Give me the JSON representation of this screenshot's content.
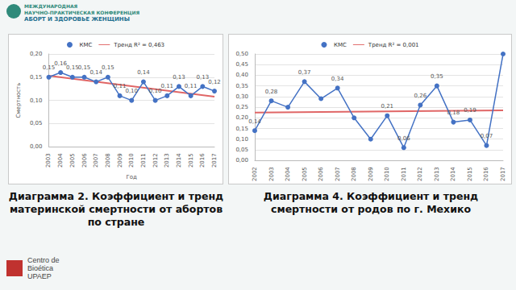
{
  "header": [
    "МЕЖДУНАРОДНАЯ",
    "НАУЧНО-ПРАКТИЧЕСКАЯ КОНФЕРЕНЦИЯ",
    "АБОРТ И ЗДОРОВЬЕ ЖЕНЩИНЫ"
  ],
  "footer": [
    "Centro de",
    "Bioética",
    "UPAEP"
  ],
  "chart_data": [
    {
      "type": "line",
      "title": "Диаграмма 2. Коэффициент и тренд материнской смертности от абортов по стране",
      "x_label": "Год",
      "y_label": "Смертность",
      "categories": [
        "2003",
        "2004",
        "2005",
        "2006",
        "2007",
        "2008",
        "2009",
        "2010",
        "2011",
        "2012",
        "2013",
        "2014",
        "2015",
        "2016",
        "2017"
      ],
      "series": [
        {
          "name": "КМС",
          "color": "#4472c4",
          "marker": "circle",
          "line_style": "solid",
          "data_labels": true,
          "values": [
            0.15,
            0.16,
            0.15,
            0.15,
            0.14,
            0.15,
            0.11,
            0.1,
            0.14,
            0.1,
            0.11,
            0.13,
            0.11,
            0.13,
            0.12
          ],
          "value_labels": [
            "0,15",
            "0,16",
            "0,15",
            "0,15",
            "0,14",
            "0,15",
            "0,11",
            "0,10",
            "0,14",
            "0,10",
            "0,11",
            "0,13",
            "0,11",
            "0,13",
            "0,12"
          ]
        },
        {
          "name": "Тренд R² = 0,463",
          "color": "#e06666",
          "marker": "none",
          "line_style": "solid",
          "values": [
            0.153,
            null,
            null,
            null,
            null,
            null,
            null,
            null,
            null,
            null,
            null,
            null,
            null,
            null,
            0.108
          ]
        }
      ],
      "ylim": [
        0,
        0.2
      ],
      "yticks": [
        {
          "value": 0,
          "label": "0,00"
        },
        {
          "value": 0.05,
          "label": "0,05"
        },
        {
          "value": 0.1,
          "label": "0,10"
        },
        {
          "value": 0.15,
          "label": "0,15"
        },
        {
          "value": 0.2,
          "label": "0,20"
        }
      ],
      "grid": true,
      "legend": "top"
    },
    {
      "type": "line",
      "title": "Диаграмма 4. Коэффициент и тренд смертности от родов по г. Мехико",
      "categories": [
        "2002",
        "2003",
        "2004",
        "2005",
        "2006",
        "2007",
        "2008",
        "2009",
        "2010",
        "2011",
        "2012",
        "2013",
        "2014",
        "2015",
        "2016",
        "2017"
      ],
      "series": [
        {
          "name": "КМС",
          "color": "#4472c4",
          "marker": "circle",
          "line_style": "solid",
          "data_labels": true,
          "values": [
            0.14,
            0.28,
            0.25,
            0.37,
            0.29,
            0.34,
            0.2,
            0.1,
            0.21,
            0.06,
            0.26,
            0.35,
            0.18,
            0.19,
            0.07,
            0.5
          ],
          "value_labels": [
            "0,14",
            "0,28",
            null,
            "0,37",
            null,
            "0,34",
            null,
            null,
            "0,21",
            "0,06",
            "0,26",
            "0,35",
            "0,18",
            "0,19",
            "0,07",
            null
          ]
        },
        {
          "name": "Тренд R² = 0,001",
          "color": "#e06666",
          "marker": "none",
          "line_style": "solid",
          "values": [
            0.225,
            null,
            null,
            null,
            null,
            null,
            null,
            null,
            null,
            null,
            null,
            null,
            null,
            null,
            null,
            0.235
          ]
        }
      ],
      "ylim": [
        0,
        0.5
      ],
      "yticks": [
        {
          "value": 0,
          "label": "0,00"
        },
        {
          "value": 0.05,
          "label": "0,05"
        },
        {
          "value": 0.1,
          "label": "0,10"
        },
        {
          "value": 0.15,
          "label": "0,15"
        },
        {
          "value": 0.2,
          "label": "0,20"
        },
        {
          "value": 0.25,
          "label": "0,25"
        },
        {
          "value": 0.3,
          "label": "0,30"
        },
        {
          "value": 0.35,
          "label": "0,35"
        },
        {
          "value": 0.4,
          "label": "0,40"
        },
        {
          "value": 0.45,
          "label": "0,45"
        },
        {
          "value": 0.5,
          "label": "0,50"
        }
      ],
      "grid": true,
      "legend": "top"
    }
  ]
}
